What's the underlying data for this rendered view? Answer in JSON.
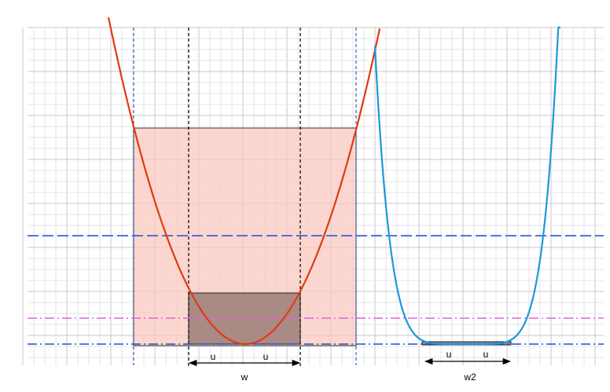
{
  "left_arrow": {
    "segments": [
      "u",
      "u"
    ],
    "label": "w"
  },
  "right_arrow": {
    "segments": [
      "u",
      "u"
    ],
    "label": "w2"
  }
}
